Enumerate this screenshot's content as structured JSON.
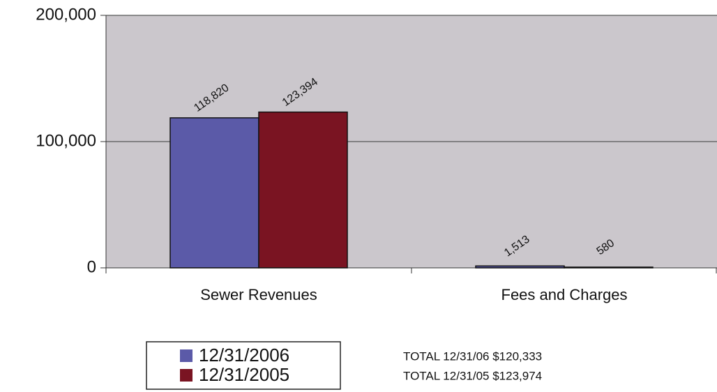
{
  "chart_data": {
    "type": "bar",
    "categories": [
      "Sewer Revenues",
      "Fees and Charges"
    ],
    "series": [
      {
        "name": "12/31/2006",
        "color": "#5b5aa8",
        "values": [
          118820,
          1513
        ],
        "value_labels": [
          "118,820",
          "1,513"
        ]
      },
      {
        "name": "12/31/2005",
        "color": "#7a1422",
        "values": [
          123394,
          580
        ],
        "value_labels": [
          "123,394",
          "580"
        ]
      }
    ],
    "ylim": [
      0,
      200000
    ],
    "yticks": [
      0,
      {
        "value": 100000,
        "label": "100,000"
      },
      {
        "value": 200000,
        "label": "200,000"
      }
    ],
    "grid": true,
    "annotations": [
      "TOTAL 12/31/06 $120,333",
      "TOTAL 12/31/05 $123,974"
    ]
  }
}
